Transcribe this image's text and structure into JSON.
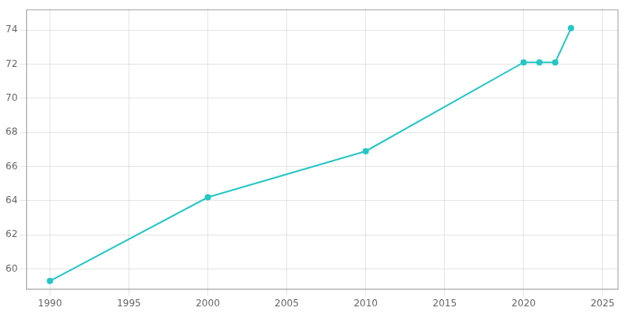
{
  "chart_data": {
    "type": "line",
    "x": [
      1990,
      2000,
      2010,
      2020,
      2021,
      2022,
      2023
    ],
    "values": [
      59.3,
      64.2,
      66.9,
      72.1,
      72.1,
      72.1,
      74.1
    ],
    "color": "#26c6c6",
    "marker": "circle",
    "xlim": [
      1988.5,
      2026
    ],
    "ylim": [
      58.8,
      75.2
    ],
    "xticks": [
      1990,
      1995,
      2000,
      2005,
      2010,
      2015,
      2020,
      2025
    ],
    "yticks": [
      60,
      62,
      64,
      66,
      68,
      70,
      72,
      74
    ],
    "grid": true
  }
}
